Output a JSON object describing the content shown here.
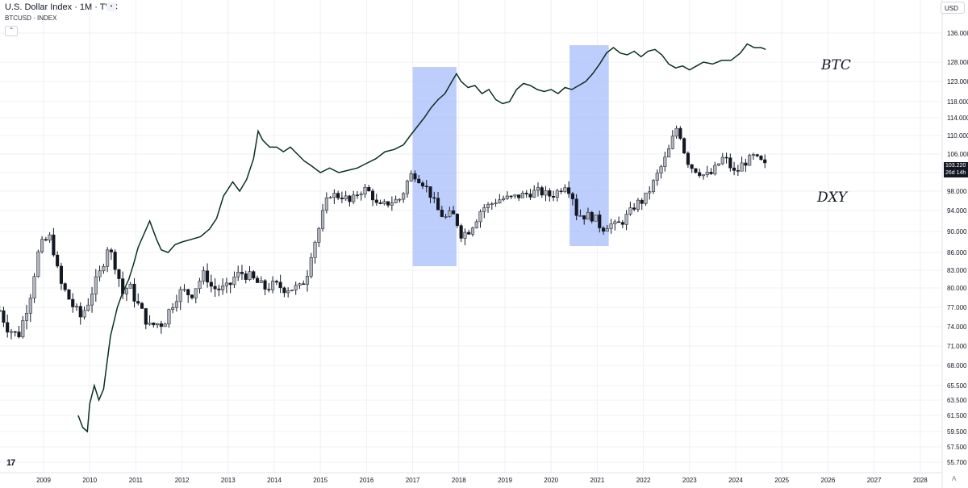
{
  "header": {
    "title": "U.S. Dollar Index · 1M · TVC",
    "subtitle": "BTCUSD · INDEX",
    "currency": "USD",
    "auto_label": "A",
    "logo": "17"
  },
  "annotations": {
    "btc": "BTC",
    "dxy": "DXY"
  },
  "last_price": {
    "value": "103.220",
    "countdown": "26d 14h"
  },
  "colors": {
    "candle_up": "#b2b5be",
    "candle_down": "#131722",
    "btc_line": "#0b3020",
    "highlight": "#a7bdfb",
    "grid": "#eef0f4"
  },
  "chart_data": {
    "type": "candlestick",
    "price_axis_ticks": [
      "136.000",
      "128.000",
      "123.000",
      "118.000",
      "114.000",
      "110.000",
      "106.000",
      "102.000",
      "98.000",
      "94.000",
      "90.000",
      "86.000",
      "83.000",
      "80.000",
      "77.000",
      "74.000",
      "71.000",
      "68.000",
      "65.500",
      "63.500",
      "61.500",
      "59.500",
      "57.500",
      "55.700"
    ],
    "time_axis_ticks": [
      "2009",
      "2010",
      "2011",
      "2012",
      "2013",
      "2014",
      "2015",
      "2016",
      "2017",
      "2018",
      "2019",
      "2020",
      "2021",
      "2022",
      "2023",
      "2024",
      "2025",
      "2026",
      "2027",
      "2028"
    ],
    "highlight_ranges": [
      {
        "start": 2017.0,
        "end": 2017.95
      },
      {
        "start": 2020.4,
        "end": 2021.25
      }
    ],
    "dxy_path": [
      [
        2008.05,
        76.5
      ],
      [
        2008.2,
        74
      ],
      [
        2008.45,
        72.5
      ],
      [
        2008.6,
        76
      ],
      [
        2008.75,
        80
      ],
      [
        2008.85,
        85
      ],
      [
        2008.95,
        87.5
      ],
      [
        2009.15,
        89
      ],
      [
        2009.25,
        85
      ],
      [
        2009.35,
        81
      ],
      [
        2009.5,
        79
      ],
      [
        2009.65,
        77
      ],
      [
        2009.8,
        75.5
      ],
      [
        2009.95,
        77.5
      ],
      [
        2010.1,
        80.5
      ],
      [
        2010.25,
        83
      ],
      [
        2010.4,
        87.5
      ],
      [
        2010.45,
        86
      ],
      [
        2010.6,
        83
      ],
      [
        2010.7,
        79
      ],
      [
        2010.85,
        80.5
      ],
      [
        2011.0,
        78
      ],
      [
        2011.15,
        76
      ],
      [
        2011.3,
        74
      ],
      [
        2011.45,
        74.5
      ],
      [
        2011.6,
        74.5
      ],
      [
        2011.75,
        77
      ],
      [
        2011.9,
        79
      ],
      [
        2012.0,
        79.5
      ],
      [
        2012.2,
        79
      ],
      [
        2012.4,
        81.5
      ],
      [
        2012.5,
        82.5
      ],
      [
        2012.65,
        80
      ],
      [
        2012.85,
        79.8
      ],
      [
        2013.0,
        80
      ],
      [
        2013.15,
        82
      ],
      [
        2013.3,
        82.5
      ],
      [
        2013.45,
        82
      ],
      [
        2013.6,
        81
      ],
      [
        2013.8,
        80
      ],
      [
        2014.0,
        80.5
      ],
      [
        2014.2,
        80
      ],
      [
        2014.4,
        80
      ],
      [
        2014.55,
        80
      ],
      [
        2014.7,
        82
      ],
      [
        2014.8,
        86
      ],
      [
        2014.95,
        90
      ],
      [
        2015.1,
        95
      ],
      [
        2015.2,
        97.5
      ],
      [
        2015.35,
        97
      ],
      [
        2015.5,
        97
      ],
      [
        2015.65,
        95.5
      ],
      [
        2015.8,
        97.5
      ],
      [
        2015.95,
        98.5
      ],
      [
        2016.1,
        97.5
      ],
      [
        2016.25,
        94.5
      ],
      [
        2016.45,
        95.5
      ],
      [
        2016.6,
        96
      ],
      [
        2016.75,
        96.5
      ],
      [
        2016.9,
        100.5
      ],
      [
        2017.0,
        102
      ],
      [
        2017.1,
        101
      ],
      [
        2017.25,
        99.5
      ],
      [
        2017.4,
        97
      ],
      [
        2017.55,
        94
      ],
      [
        2017.7,
        92.5
      ],
      [
        2017.85,
        93.5
      ],
      [
        2017.95,
        92
      ],
      [
        2018.05,
        89.5
      ],
      [
        2018.2,
        90
      ],
      [
        2018.35,
        92
      ],
      [
        2018.5,
        94.5
      ],
      [
        2018.65,
        95
      ],
      [
        2018.8,
        96
      ],
      [
        2018.95,
        96.5
      ],
      [
        2019.1,
        96.5
      ],
      [
        2019.3,
        97
      ],
      [
        2019.5,
        97.5
      ],
      [
        2019.7,
        98
      ],
      [
        2019.85,
        97.5
      ],
      [
        2020.0,
        97
      ],
      [
        2020.15,
        98
      ],
      [
        2020.3,
        99.5
      ],
      [
        2020.45,
        97.5
      ],
      [
        2020.55,
        93.5
      ],
      [
        2020.7,
        93
      ],
      [
        2020.85,
        93
      ],
      [
        2020.95,
        92.5
      ],
      [
        2021.1,
        90.5
      ],
      [
        2021.25,
        91.5
      ],
      [
        2021.4,
        91
      ],
      [
        2021.55,
        92
      ],
      [
        2021.7,
        93.5
      ],
      [
        2021.85,
        95.5
      ],
      [
        2022.0,
        96
      ],
      [
        2022.15,
        98.5
      ],
      [
        2022.3,
        101.5
      ],
      [
        2022.45,
        104.5
      ],
      [
        2022.6,
        108
      ],
      [
        2022.7,
        112
      ],
      [
        2022.8,
        110
      ],
      [
        2022.9,
        106
      ],
      [
        2023.0,
        103.5
      ],
      [
        2023.15,
        102.5
      ],
      [
        2023.3,
        101.5
      ],
      [
        2023.45,
        101.5
      ],
      [
        2023.6,
        103.5
      ],
      [
        2023.75,
        105.5
      ],
      [
        2023.9,
        103
      ],
      [
        2024.0,
        101.5
      ],
      [
        2024.1,
        103.5
      ],
      [
        2024.25,
        104.5
      ],
      [
        2024.4,
        105.5
      ],
      [
        2024.5,
        104.5
      ],
      [
        2024.6,
        104
      ],
      [
        2024.65,
        103.22
      ]
    ],
    "btc_path": [
      [
        2009.75,
        61.5
      ],
      [
        2009.85,
        60
      ],
      [
        2009.95,
        59.5
      ],
      [
        2010.0,
        63
      ],
      [
        2010.1,
        65.5
      ],
      [
        2010.2,
        63.5
      ],
      [
        2010.3,
        65
      ],
      [
        2010.45,
        72.5
      ],
      [
        2010.6,
        77
      ],
      [
        2010.7,
        79
      ],
      [
        2010.85,
        81.5
      ],
      [
        2010.95,
        84
      ],
      [
        2011.05,
        87
      ],
      [
        2011.15,
        89
      ],
      [
        2011.3,
        92
      ],
      [
        2011.45,
        88.5
      ],
      [
        2011.55,
        86.5
      ],
      [
        2011.7,
        86
      ],
      [
        2011.85,
        87.5
      ],
      [
        2012.0,
        88
      ],
      [
        2012.2,
        88.5
      ],
      [
        2012.4,
        89
      ],
      [
        2012.6,
        90.5
      ],
      [
        2012.75,
        92.5
      ],
      [
        2012.9,
        97
      ],
      [
        2013.1,
        100
      ],
      [
        2013.25,
        98
      ],
      [
        2013.4,
        100.5
      ],
      [
        2013.55,
        105
      ],
      [
        2013.65,
        111
      ],
      [
        2013.75,
        109
      ],
      [
        2013.9,
        107.5
      ],
      [
        2014.05,
        107.5
      ],
      [
        2014.2,
        106.5
      ],
      [
        2014.35,
        107.5
      ],
      [
        2014.5,
        106
      ],
      [
        2014.65,
        104.5
      ],
      [
        2014.8,
        103.5
      ],
      [
        2015.0,
        102
      ],
      [
        2015.2,
        103
      ],
      [
        2015.4,
        102
      ],
      [
        2015.6,
        102.5
      ],
      [
        2015.8,
        103
      ],
      [
        2016.0,
        104
      ],
      [
        2016.2,
        105
      ],
      [
        2016.4,
        106.5
      ],
      [
        2016.6,
        107
      ],
      [
        2016.8,
        108
      ],
      [
        2016.95,
        110
      ],
      [
        2017.1,
        112
      ],
      [
        2017.25,
        114
      ],
      [
        2017.4,
        116.5
      ],
      [
        2017.55,
        118.5
      ],
      [
        2017.7,
        120
      ],
      [
        2017.85,
        123
      ],
      [
        2017.95,
        125
      ],
      [
        2018.05,
        123
      ],
      [
        2018.2,
        121.5
      ],
      [
        2018.35,
        122
      ],
      [
        2018.5,
        120
      ],
      [
        2018.65,
        121
      ],
      [
        2018.8,
        118.5
      ],
      [
        2018.95,
        117.5
      ],
      [
        2019.1,
        118
      ],
      [
        2019.25,
        121
      ],
      [
        2019.4,
        122.5
      ],
      [
        2019.55,
        122
      ],
      [
        2019.7,
        121
      ],
      [
        2019.85,
        120.5
      ],
      [
        2020.0,
        121
      ],
      [
        2020.15,
        120
      ],
      [
        2020.3,
        121.5
      ],
      [
        2020.45,
        121
      ],
      [
        2020.6,
        122
      ],
      [
        2020.75,
        123
      ],
      [
        2020.9,
        125
      ],
      [
        2021.05,
        127.5
      ],
      [
        2021.2,
        130.5
      ],
      [
        2021.35,
        132
      ],
      [
        2021.5,
        130.5
      ],
      [
        2021.65,
        130
      ],
      [
        2021.8,
        131
      ],
      [
        2021.95,
        129.5
      ],
      [
        2022.1,
        131
      ],
      [
        2022.25,
        131.5
      ],
      [
        2022.4,
        130
      ],
      [
        2022.55,
        127.5
      ],
      [
        2022.7,
        126.5
      ],
      [
        2022.85,
        127
      ],
      [
        2023.0,
        126
      ],
      [
        2023.15,
        127
      ],
      [
        2023.3,
        128
      ],
      [
        2023.5,
        127.5
      ],
      [
        2023.7,
        128.5
      ],
      [
        2023.9,
        128.5
      ],
      [
        2024.1,
        130.5
      ],
      [
        2024.25,
        133
      ],
      [
        2024.4,
        132
      ],
      [
        2024.55,
        132
      ],
      [
        2024.65,
        131.5
      ]
    ]
  }
}
